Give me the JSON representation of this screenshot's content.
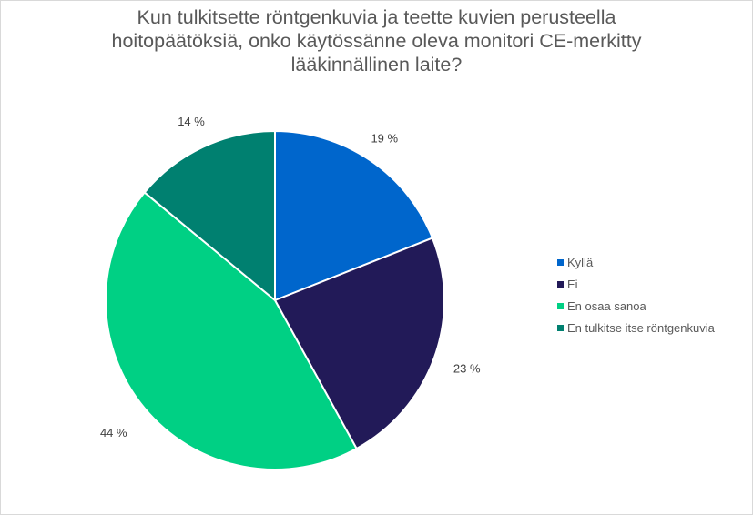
{
  "chart_data": {
    "type": "pie",
    "title_lines": [
      "Kun tulkitsette röntgenkuvia ja teette kuvien perusteella",
      "hoitopäätöksiä, onko käytössänne oleva monitori CE-merkitty",
      "lääkinnällinen laite?"
    ],
    "categories": [
      "Kyllä",
      "Ei",
      "En osaa sanoa",
      "En tulkitse itse röntgenkuvia"
    ],
    "values": [
      19,
      23,
      44,
      14
    ],
    "labels": [
      "19 %",
      "23 %",
      "44 %",
      "14 %"
    ],
    "colors": [
      "#0066cc",
      "#221a58",
      "#00d084",
      "#008070"
    ],
    "legend_position": "right"
  }
}
